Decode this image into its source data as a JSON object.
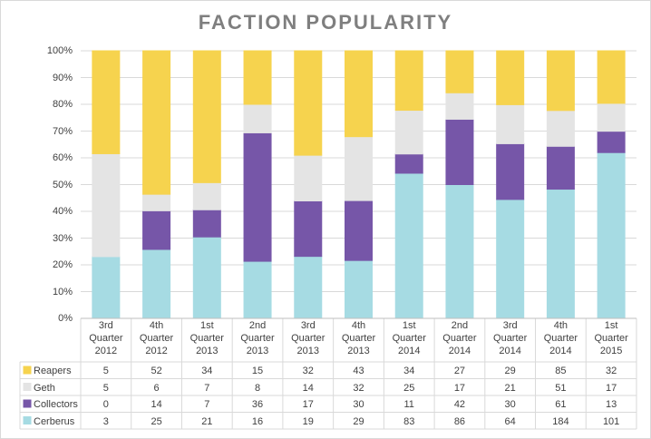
{
  "chart_data": {
    "type": "bar",
    "stacked": "percent",
    "title": "FACTION POPULARITY",
    "categories": [
      "3rd Quarter 2012",
      "4th Quarter 2012",
      "1st Quarter 2013",
      "2nd Quarter 2013",
      "3rd Quarter 2013",
      "4th Quarter 2013",
      "1st Quarter 2014",
      "2nd Quarter 2014",
      "3rd Quarter 2014",
      "4th Quarter 2014",
      "1st Quarter 2015"
    ],
    "series": [
      {
        "name": "Reapers",
        "color": "#f6d34e",
        "values": [
          5,
          52,
          34,
          15,
          32,
          43,
          34,
          27,
          29,
          85,
          32
        ]
      },
      {
        "name": "Geth",
        "color": "#e4e4e4",
        "values": [
          5,
          6,
          7,
          8,
          14,
          32,
          25,
          17,
          21,
          51,
          17
        ]
      },
      {
        "name": "Collectors",
        "color": "#7656a8",
        "values": [
          0,
          14,
          7,
          36,
          17,
          30,
          11,
          42,
          30,
          61,
          13
        ]
      },
      {
        "name": "Cerberus",
        "color": "#a6dbe3",
        "values": [
          3,
          25,
          21,
          16,
          19,
          29,
          83,
          86,
          64,
          184,
          101
        ]
      }
    ],
    "ylim": [
      0,
      100
    ],
    "yticks": [
      {
        "value": 0,
        "label": "0%"
      },
      {
        "value": 10,
        "label": "10%"
      },
      {
        "value": 20,
        "label": "20%"
      },
      {
        "value": 30,
        "label": "30%"
      },
      {
        "value": 40,
        "label": "40%"
      },
      {
        "value": 50,
        "label": "50%"
      },
      {
        "value": 60,
        "label": "60%"
      },
      {
        "value": 70,
        "label": "70%"
      },
      {
        "value": 80,
        "label": "80%"
      },
      {
        "value": 90,
        "label": "90%"
      },
      {
        "value": 100,
        "label": "100%"
      }
    ],
    "grid": true
  }
}
